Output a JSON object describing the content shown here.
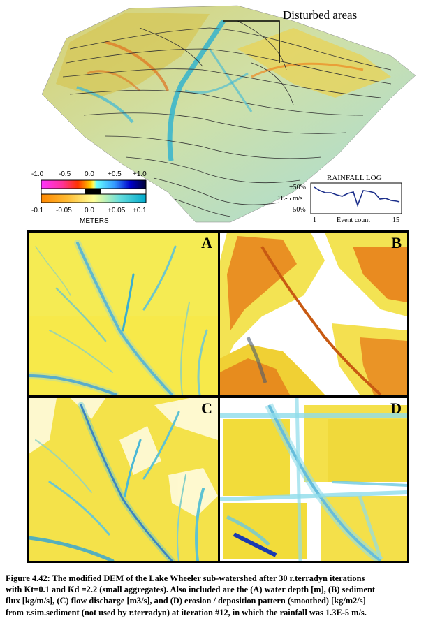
{
  "figure": {
    "annotation_label": "Disturbed areas",
    "legend": {
      "top_ticks": [
        "-1.0",
        "-0.5",
        "0.0",
        "+0.5",
        "+1.0"
      ],
      "bottom_ticks": [
        "-0.1",
        "-0.05",
        "0.0",
        "+0.05",
        "+0.1"
      ],
      "units": "METERS"
    },
    "rainfall_log": {
      "title": "RAINFALL LOG",
      "y_ticks": [
        "+50%",
        "1E-5 m/s",
        "-50%"
      ],
      "x_start": "1",
      "x_label": "Event count",
      "x_end": "15"
    },
    "panels": [
      {
        "id": "A",
        "label": "A"
      },
      {
        "id": "B",
        "label": "B"
      },
      {
        "id": "C",
        "label": "C"
      },
      {
        "id": "D",
        "label": "D"
      }
    ]
  },
  "caption": {
    "line1": "Figure 4.42: The modified DEM of the Lake Wheeler sub-watershed after 30 r.terradyn iterations",
    "line2": "with Kt=0.1 and Kd =2.2 (small aggregates).  Also included are the (A) water depth [m], (B) sediment",
    "line3": "flux [kg/m/s], (C) flow discharge [m3/s], and (D) erosion / deposition pattern (smoothed) [kg/m2/s]",
    "line4": "from r.sim.sediment (not used by r.terradyn) at iteration #12, in which the rainfall was 1.3E-5 m/s."
  }
}
